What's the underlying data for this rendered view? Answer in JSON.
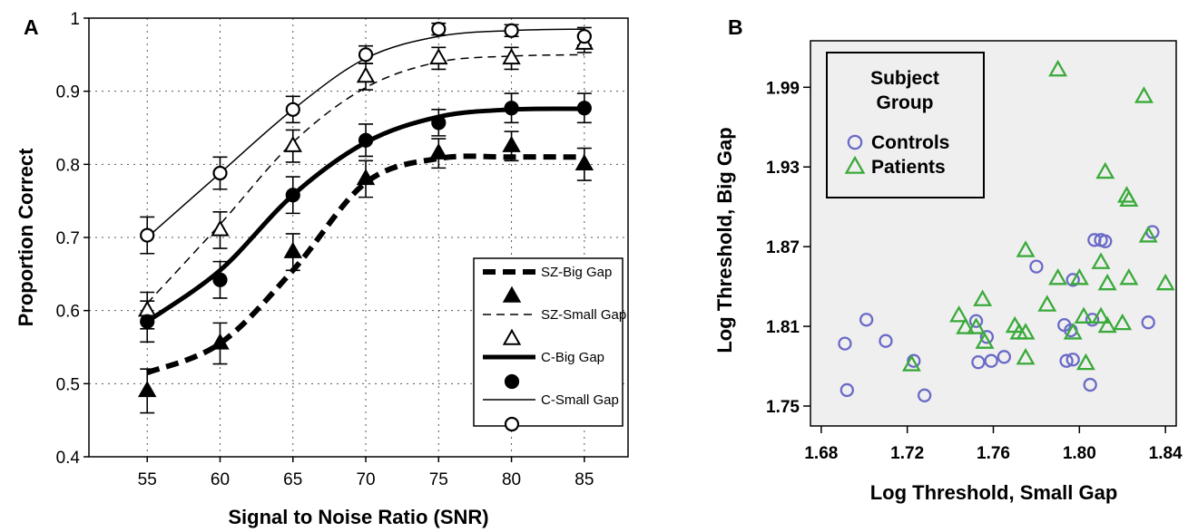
{
  "chart_data": [
    {
      "panel_label": "A",
      "type": "line",
      "xlabel": "Signal to Noise Ratio (SNR)",
      "ylabel": "Proportion Correct",
      "x": [
        55,
        60,
        65,
        70,
        75,
        80,
        85
      ],
      "x_ticks": [
        "55",
        "60",
        "65",
        "70",
        "75",
        "80",
        "85"
      ],
      "y_ticks": [
        "0.4",
        "0.5",
        "0.6",
        "0.7",
        "0.8",
        "0.9",
        "1"
      ],
      "xlim": [
        51,
        88
      ],
      "ylim": [
        0.4,
        1.0
      ],
      "grid": true,
      "legend_position": "bottom-right",
      "series": [
        {
          "name": "SZ-Big Gap",
          "marker": "filled-triangle",
          "line": "thick-dashed",
          "values": [
            0.49,
            0.555,
            0.68,
            0.78,
            0.815,
            0.825,
            0.8
          ],
          "error": [
            0.03,
            0.028,
            0.025,
            0.025,
            0.02,
            0.02,
            0.022
          ],
          "fit": [
            0.515,
            0.555,
            0.655,
            0.775,
            0.808,
            0.81,
            0.81
          ]
        },
        {
          "name": "SZ-Small Gap",
          "marker": "open-triangle",
          "line": "thin-dashed",
          "values": [
            0.6,
            0.71,
            0.825,
            0.92,
            0.945,
            0.945,
            0.965
          ],
          "error": [
            0.025,
            0.025,
            0.022,
            0.018,
            0.015,
            0.015,
            0.012
          ],
          "fit": [
            0.61,
            0.718,
            0.83,
            0.905,
            0.94,
            0.948,
            0.95
          ]
        },
        {
          "name": "C-Big Gap",
          "marker": "filled-circle",
          "line": "thick-solid",
          "values": [
            0.585,
            0.642,
            0.758,
            0.833,
            0.857,
            0.877,
            0.877
          ],
          "error": [
            0.028,
            0.025,
            0.025,
            0.022,
            0.018,
            0.02,
            0.02
          ],
          "fit": [
            0.585,
            0.655,
            0.758,
            0.83,
            0.865,
            0.875,
            0.876
          ]
        },
        {
          "name": "C-Small Gap",
          "marker": "open-circle",
          "line": "thin-solid",
          "values": [
            0.703,
            0.788,
            0.875,
            0.95,
            0.985,
            0.983,
            0.975
          ],
          "error": [
            0.025,
            0.022,
            0.018,
            0.012,
            0.008,
            0.008,
            0.012
          ],
          "fit": [
            0.7,
            0.788,
            0.875,
            0.945,
            0.975,
            0.983,
            0.985
          ]
        }
      ]
    },
    {
      "panel_label": "B",
      "type": "scatter",
      "xlabel": "Log Threshold, Small Gap",
      "ylabel": "Log Threshold, Big Gap",
      "xlim": [
        1.675,
        1.845
      ],
      "ylim": [
        1.735,
        2.025
      ],
      "x_ticks": [
        "1.68",
        "1.72",
        "1.76",
        "1.80",
        "1.84"
      ],
      "y_ticks": [
        "1.75",
        "1.81",
        "1.87",
        "1.93",
        "1.99"
      ],
      "x_tick_values": [
        1.68,
        1.72,
        1.76,
        1.8,
        1.84
      ],
      "y_tick_values": [
        1.75,
        1.81,
        1.87,
        1.93,
        1.99
      ],
      "grid": false,
      "legend_position": "top-left",
      "legend_title": "Subject\nGroup",
      "legend_title_lines": [
        "Subject",
        "Group"
      ],
      "series": [
        {
          "name": "Controls",
          "marker": "open-circle",
          "color": "#6a6ac8",
          "points": [
            [
              1.691,
              1.797
            ],
            [
              1.692,
              1.762
            ],
            [
              1.701,
              1.815
            ],
            [
              1.71,
              1.799
            ],
            [
              1.723,
              1.784
            ],
            [
              1.728,
              1.758
            ],
            [
              1.752,
              1.814
            ],
            [
              1.753,
              1.783
            ],
            [
              1.757,
              1.802
            ],
            [
              1.759,
              1.784
            ],
            [
              1.765,
              1.787
            ],
            [
              1.78,
              1.855
            ],
            [
              1.793,
              1.811
            ],
            [
              1.794,
              1.784
            ],
            [
              1.796,
              1.807
            ],
            [
              1.797,
              1.785
            ],
            [
              1.797,
              1.845
            ],
            [
              1.805,
              1.766
            ],
            [
              1.806,
              1.815
            ],
            [
              1.807,
              1.875
            ],
            [
              1.81,
              1.875
            ],
            [
              1.812,
              1.874
            ],
            [
              1.832,
              1.813
            ],
            [
              1.834,
              1.881
            ]
          ]
        },
        {
          "name": "Patients",
          "marker": "open-triangle",
          "color": "#3aaa3a",
          "points": [
            [
              1.79,
              2.003
            ],
            [
              1.83,
              1.983
            ],
            [
              1.812,
              1.926
            ],
            [
              1.822,
              1.908
            ],
            [
              1.823,
              1.905
            ],
            [
              1.832,
              1.878
            ],
            [
              1.775,
              1.867
            ],
            [
              1.81,
              1.858
            ],
            [
              1.79,
              1.846
            ],
            [
              1.8,
              1.846
            ],
            [
              1.813,
              1.842
            ],
            [
              1.823,
              1.846
            ],
            [
              1.84,
              1.842
            ],
            [
              1.755,
              1.83
            ],
            [
              1.785,
              1.826
            ],
            [
              1.744,
              1.818
            ],
            [
              1.747,
              1.809
            ],
            [
              1.752,
              1.809
            ],
            [
              1.756,
              1.798
            ],
            [
              1.77,
              1.81
            ],
            [
              1.772,
              1.805
            ],
            [
              1.775,
              1.805
            ],
            [
              1.775,
              1.786
            ],
            [
              1.797,
              1.805
            ],
            [
              1.802,
              1.817
            ],
            [
              1.81,
              1.817
            ],
            [
              1.813,
              1.81
            ],
            [
              1.82,
              1.812
            ],
            [
              1.803,
              1.782
            ],
            [
              1.722,
              1.781
            ]
          ]
        }
      ]
    }
  ]
}
